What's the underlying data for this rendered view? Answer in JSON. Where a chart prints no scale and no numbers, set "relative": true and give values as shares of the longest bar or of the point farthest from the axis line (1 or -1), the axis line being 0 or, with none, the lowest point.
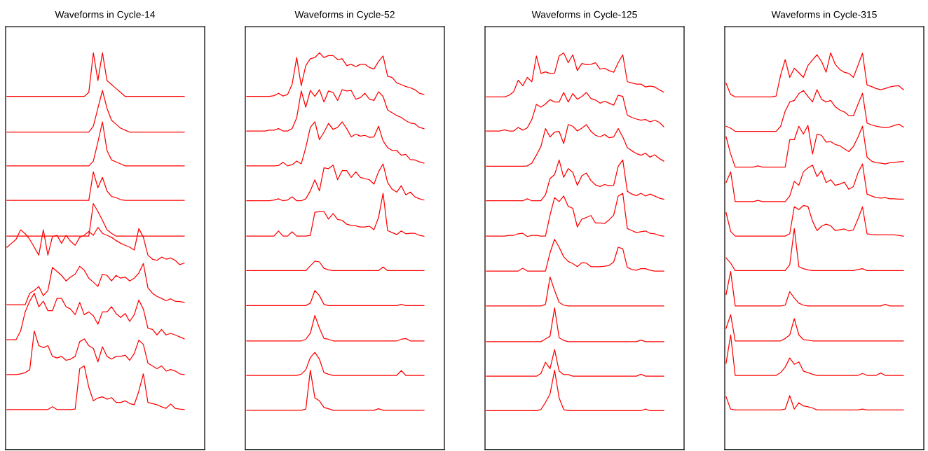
{
  "chart_data": [
    {
      "type": "line",
      "title": "Waveforms in Cycle-14",
      "relative": true,
      "categories": [
        null,
        null,
        null,
        null,
        null,
        null,
        null,
        null,
        null,
        null,
        null,
        null,
        null,
        null,
        null,
        null,
        null,
        null,
        null,
        null,
        null,
        null,
        null,
        null,
        null,
        null,
        null,
        null,
        null,
        null,
        null,
        null,
        null,
        null,
        null,
        null,
        null,
        null,
        null,
        null
      ],
      "series": [
        {
          "color": "#ff0000",
          "values": [
            0.89,
            0.89,
            0.89,
            0.89,
            0.89,
            0.89,
            0.89,
            0.89,
            0.89,
            0.89,
            0.89,
            0.89,
            0.89,
            0.89,
            0.89,
            0.89,
            0.89,
            0.89,
            0.9,
            1.0,
            0.93,
            1.0,
            0.93,
            0.92,
            0.91,
            0.9,
            0.89,
            0.89,
            0.89,
            0.89,
            0.89,
            0.89,
            0.89,
            0.89,
            0.89,
            0.89,
            0.89,
            0.89,
            0.89,
            0.89
          ]
        },
        {
          "color": "#ff0000",
          "values": [
            0.8,
            0.8,
            0.8,
            0.8,
            0.8,
            0.8,
            0.8,
            0.8,
            0.8,
            0.8,
            0.8,
            0.8,
            0.8,
            0.8,
            0.8,
            0.8,
            0.8,
            0.8,
            0.8,
            0.815,
            0.86,
            0.905,
            0.86,
            0.83,
            0.82,
            0.81,
            0.805,
            0.8,
            0.8,
            0.8,
            0.8,
            0.8,
            0.8,
            0.8,
            0.8,
            0.8,
            0.8,
            0.8,
            0.8,
            0.8
          ]
        },
        {
          "color": "#ff0000",
          "values": [
            0.715,
            0.715,
            0.715,
            0.715,
            0.715,
            0.715,
            0.715,
            0.715,
            0.715,
            0.715,
            0.715,
            0.715,
            0.715,
            0.715,
            0.715,
            0.715,
            0.715,
            0.715,
            0.715,
            0.727,
            0.775,
            0.826,
            0.754,
            0.73,
            0.725,
            0.72,
            0.715,
            0.715,
            0.715,
            0.715,
            0.715,
            0.715,
            0.715,
            0.715,
            0.715,
            0.715,
            0.715,
            0.715,
            0.715,
            0.715
          ]
        },
        {
          "color": "#ff0000",
          "values": [
            0.628,
            0.628,
            0.628,
            0.628,
            0.628,
            0.628,
            0.628,
            0.628,
            0.628,
            0.628,
            0.628,
            0.628,
            0.628,
            0.628,
            0.628,
            0.628,
            0.628,
            0.628,
            0.628,
            0.7,
            0.66,
            0.686,
            0.652,
            0.638,
            0.635,
            0.63,
            0.628,
            0.628,
            0.628,
            0.628,
            0.628,
            0.628,
            0.628,
            0.628,
            0.628,
            0.628,
            0.628,
            0.628,
            0.628,
            0.628
          ]
        },
        {
          "color": "#ff0000",
          "values": [
            0.538,
            0.538,
            0.538,
            0.538,
            0.538,
            0.538,
            0.538,
            0.538,
            0.538,
            0.538,
            0.538,
            0.538,
            0.538,
            0.538,
            0.538,
            0.538,
            0.538,
            0.538,
            0.538,
            0.62,
            0.6,
            0.578,
            0.554,
            0.545,
            0.538,
            0.538,
            0.538,
            0.538,
            0.538,
            0.538,
            0.538,
            0.538,
            0.538,
            0.538,
            0.538,
            0.538,
            0.538,
            0.538,
            0.538,
            0.538
          ]
        },
        {
          "color": "#ff0000",
          "values": [
            0.51,
            0.52,
            0.53,
            0.554,
            0.544,
            0.53,
            0.51,
            0.49,
            0.554,
            0.49,
            0.537,
            0.54,
            0.52,
            0.54,
            0.525,
            0.515,
            0.535,
            0.54,
            0.55,
            0.54,
            0.56,
            0.545,
            0.54,
            0.535,
            0.527,
            0.52,
            0.515,
            0.51,
            0.503,
            0.557,
            0.535,
            0.49,
            0.48,
            0.477,
            0.485,
            0.48,
            0.483,
            0.477,
            0.466,
            0.47
          ]
        },
        {
          "color": "#ff0000",
          "values": [
            0.365,
            0.365,
            0.365,
            0.365,
            0.365,
            0.394,
            0.401,
            0.411,
            0.388,
            0.401,
            0.459,
            0.449,
            0.439,
            0.425,
            0.435,
            0.442,
            0.462,
            0.452,
            0.432,
            0.422,
            0.411,
            0.442,
            0.439,
            0.425,
            0.439,
            0.432,
            0.435,
            0.425,
            0.432,
            0.445,
            0.469,
            0.408,
            0.394,
            0.386,
            0.381,
            0.375,
            0.38,
            0.374,
            0.373,
            0.371
          ]
        },
        {
          "color": "#ff0000",
          "values": [
            0.277,
            0.277,
            0.277,
            0.299,
            0.347,
            0.374,
            0.394,
            0.36,
            0.374,
            0.35,
            0.35,
            0.381,
            0.381,
            0.36,
            0.354,
            0.34,
            0.371,
            0.34,
            0.347,
            0.337,
            0.316,
            0.347,
            0.347,
            0.36,
            0.343,
            0.333,
            0.343,
            0.323,
            0.34,
            0.377,
            0.354,
            0.306,
            0.303,
            0.289,
            0.303,
            0.289,
            0.293,
            0.289,
            0.284,
            0.279
          ]
        },
        {
          "color": "#ff0000",
          "values": [
            0.189,
            0.189,
            0.189,
            0.191,
            0.194,
            0.201,
            0.299,
            0.262,
            0.257,
            0.262,
            0.235,
            0.231,
            0.235,
            0.225,
            0.228,
            0.235,
            0.272,
            0.279,
            0.262,
            0.255,
            0.221,
            0.259,
            0.235,
            0.228,
            0.235,
            0.235,
            0.238,
            0.225,
            0.242,
            0.276,
            0.265,
            0.218,
            0.211,
            0.204,
            0.211,
            0.198,
            0.202,
            0.198,
            0.191,
            0.189
          ]
        },
        {
          "color": "#ff0000",
          "values": [
            0.101,
            0.101,
            0.101,
            0.101,
            0.101,
            0.101,
            0.101,
            0.101,
            0.101,
            0.101,
            0.108,
            0.101,
            0.101,
            0.101,
            0.101,
            0.102,
            0.204,
            0.211,
            0.157,
            0.123,
            0.13,
            0.133,
            0.127,
            0.131,
            0.119,
            0.119,
            0.123,
            0.116,
            0.113,
            0.147,
            0.191,
            0.119,
            0.116,
            0.113,
            0.108,
            0.104,
            0.115,
            0.104,
            0.102,
            0.101
          ]
        }
      ]
    },
    {
      "type": "line",
      "title": "Waveforms in Cycle-52",
      "relative": true,
      "categories": [
        null,
        null,
        null,
        null,
        null,
        null,
        null,
        null,
        null,
        null,
        null,
        null,
        null,
        null,
        null,
        null,
        null,
        null,
        null,
        null,
        null,
        null,
        null,
        null,
        null,
        null,
        null,
        null,
        null,
        null,
        null,
        null,
        null,
        null,
        null,
        null,
        null,
        null,
        null,
        null
      ],
      "series": [
        {
          "color": "#ff0000",
          "values": [
            0.89,
            0.89,
            0.89,
            0.89,
            0.89,
            0.89,
            0.892,
            0.898,
            0.891,
            0.895,
            0.921,
            0.988,
            0.917,
            0.968,
            0.985,
            0.988,
            1.0,
            0.988,
            0.993,
            0.993,
            0.983,
            0.985,
            0.968,
            0.971,
            0.965,
            0.971,
            0.971,
            0.963,
            0.959,
            0.978,
            0.992,
            0.941,
            0.938,
            0.924,
            0.92,
            0.915,
            0.912,
            0.907,
            0.898,
            0.895
          ]
        },
        {
          "color": "#ff0000",
          "values": [
            0.803,
            0.803,
            0.803,
            0.803,
            0.803,
            0.805,
            0.805,
            0.809,
            0.803,
            0.803,
            0.809,
            0.836,
            0.904,
            0.863,
            0.905,
            0.89,
            0.907,
            0.876,
            0.904,
            0.9,
            0.88,
            0.907,
            0.904,
            0.905,
            0.883,
            0.887,
            0.898,
            0.883,
            0.88,
            0.902,
            0.89,
            0.856,
            0.849,
            0.842,
            0.837,
            0.829,
            0.823,
            0.821,
            0.812,
            0.809
          ]
        },
        {
          "color": "#ff0000",
          "values": [
            0.715,
            0.715,
            0.715,
            0.715,
            0.715,
            0.715,
            0.715,
            0.716,
            0.724,
            0.715,
            0.718,
            0.727,
            0.72,
            0.761,
            0.812,
            0.826,
            0.781,
            0.8,
            0.822,
            0.807,
            0.812,
            0.826,
            0.809,
            0.788,
            0.795,
            0.79,
            0.792,
            0.787,
            0.788,
            0.815,
            0.778,
            0.761,
            0.754,
            0.754,
            0.742,
            0.744,
            0.731,
            0.73,
            0.725,
            0.722
          ]
        },
        {
          "color": "#ff0000",
          "values": [
            0.627,
            0.627,
            0.627,
            0.627,
            0.627,
            0.627,
            0.629,
            0.632,
            0.627,
            0.629,
            0.637,
            0.627,
            0.627,
            0.632,
            0.652,
            0.68,
            0.652,
            0.71,
            0.708,
            0.717,
            0.68,
            0.703,
            0.703,
            0.686,
            0.7,
            0.686,
            0.683,
            0.68,
            0.669,
            0.7,
            0.72,
            0.673,
            0.656,
            0.649,
            0.665,
            0.642,
            0.649,
            0.637,
            0.632,
            0.629
          ]
        },
        {
          "color": "#ff0000",
          "values": [
            0.538,
            0.538,
            0.538,
            0.538,
            0.538,
            0.538,
            0.538,
            0.551,
            0.538,
            0.538,
            0.549,
            0.538,
            0.538,
            0.538,
            0.54,
            0.598,
            0.6,
            0.6,
            0.581,
            0.595,
            0.58,
            0.578,
            0.568,
            0.565,
            0.564,
            0.561,
            0.561,
            0.563,
            0.554,
            0.585,
            0.646,
            0.552,
            0.547,
            0.542,
            0.551,
            0.544,
            0.545,
            0.545,
            0.54,
            0.538
          ]
        },
        {
          "color": "#ff0000",
          "values": [
            0.451,
            0.451,
            0.451,
            0.451,
            0.451,
            0.451,
            0.451,
            0.451,
            0.451,
            0.451,
            0.451,
            0.451,
            0.451,
            0.451,
            0.463,
            0.475,
            0.473,
            0.457,
            0.453,
            0.451,
            0.451,
            0.451,
            0.451,
            0.451,
            0.451,
            0.451,
            0.451,
            0.451,
            0.451,
            0.451,
            0.46,
            0.451,
            0.451,
            0.451,
            0.451,
            0.451,
            0.451,
            0.451,
            0.451,
            0.451
          ]
        },
        {
          "color": "#ff0000",
          "values": [
            0.363,
            0.363,
            0.363,
            0.363,
            0.363,
            0.363,
            0.363,
            0.363,
            0.363,
            0.363,
            0.363,
            0.363,
            0.363,
            0.363,
            0.369,
            0.401,
            0.388,
            0.366,
            0.363,
            0.363,
            0.363,
            0.363,
            0.363,
            0.363,
            0.363,
            0.363,
            0.363,
            0.363,
            0.363,
            0.363,
            0.363,
            0.363,
            0.363,
            0.363,
            0.366,
            0.363,
            0.363,
            0.363,
            0.363,
            0.363
          ]
        },
        {
          "color": "#ff0000",
          "values": [
            0.274,
            0.274,
            0.274,
            0.274,
            0.274,
            0.274,
            0.274,
            0.274,
            0.274,
            0.274,
            0.274,
            0.274,
            0.274,
            0.278,
            0.293,
            0.338,
            0.306,
            0.28,
            0.278,
            0.274,
            0.274,
            0.274,
            0.274,
            0.274,
            0.274,
            0.274,
            0.274,
            0.274,
            0.274,
            0.274,
            0.274,
            0.274,
            0.274,
            0.274,
            0.278,
            0.28,
            0.274,
            0.274,
            0.274,
            0.274
          ]
        },
        {
          "color": "#ff0000",
          "values": [
            0.187,
            0.187,
            0.187,
            0.187,
            0.187,
            0.187,
            0.187,
            0.187,
            0.187,
            0.187,
            0.187,
            0.187,
            0.19,
            0.201,
            0.232,
            0.245,
            0.228,
            0.194,
            0.19,
            0.187,
            0.187,
            0.187,
            0.187,
            0.187,
            0.187,
            0.187,
            0.187,
            0.187,
            0.187,
            0.187,
            0.187,
            0.187,
            0.187,
            0.187,
            0.199,
            0.187,
            0.187,
            0.187,
            0.187,
            0.187
          ]
        },
        {
          "color": "#ff0000",
          "values": [
            0.099,
            0.099,
            0.099,
            0.099,
            0.099,
            0.099,
            0.099,
            0.099,
            0.099,
            0.099,
            0.099,
            0.099,
            0.099,
            0.102,
            0.2,
            0.13,
            0.123,
            0.106,
            0.103,
            0.099,
            0.099,
            0.099,
            0.099,
            0.099,
            0.099,
            0.099,
            0.099,
            0.099,
            0.099,
            0.103,
            0.099,
            0.099,
            0.099,
            0.099,
            0.099,
            0.099,
            0.099,
            0.099,
            0.099,
            0.099
          ]
        }
      ]
    },
    {
      "type": "line",
      "title": "Waveforms in Cycle-125",
      "relative": true,
      "categories": [
        null,
        null,
        null,
        null,
        null,
        null,
        null,
        null,
        null,
        null,
        null,
        null,
        null,
        null,
        null,
        null,
        null,
        null,
        null,
        null,
        null,
        null,
        null,
        null,
        null,
        null,
        null,
        null,
        null,
        null,
        null,
        null,
        null,
        null,
        null,
        null,
        null,
        null,
        null,
        null
      ],
      "series": [
        {
          "color": "#ff0000",
          "values": [
            0.889,
            0.889,
            0.889,
            0.889,
            0.889,
            0.893,
            0.902,
            0.931,
            0.917,
            0.938,
            0.927,
            0.992,
            0.948,
            0.952,
            0.948,
            0.949,
            0.992,
            1.0,
            0.975,
            0.995,
            0.955,
            0.973,
            0.97,
            0.971,
            0.975,
            0.959,
            0.961,
            0.955,
            0.951,
            0.975,
            0.995,
            0.927,
            0.924,
            0.921,
            0.921,
            0.914,
            0.916,
            0.914,
            0.907,
            0.901
          ]
        },
        {
          "color": "#ff0000",
          "values": [
            0.803,
            0.803,
            0.803,
            0.803,
            0.806,
            0.803,
            0.803,
            0.812,
            0.805,
            0.811,
            0.832,
            0.87,
            0.863,
            0.871,
            0.882,
            0.876,
            0.876,
            0.9,
            0.876,
            0.897,
            0.883,
            0.89,
            0.9,
            0.885,
            0.881,
            0.873,
            0.878,
            0.873,
            0.868,
            0.893,
            0.89,
            0.843,
            0.837,
            0.833,
            0.83,
            0.832,
            0.826,
            0.83,
            0.825,
            0.814
          ]
        },
        {
          "color": "#ff0000",
          "values": [
            0.714,
            0.714,
            0.714,
            0.714,
            0.714,
            0.714,
            0.714,
            0.714,
            0.714,
            0.715,
            0.722,
            0.742,
            0.764,
            0.809,
            0.788,
            0.8,
            0.802,
            0.771,
            0.819,
            0.815,
            0.803,
            0.81,
            0.819,
            0.802,
            0.792,
            0.788,
            0.794,
            0.786,
            0.788,
            0.809,
            0.788,
            0.761,
            0.753,
            0.746,
            0.742,
            0.747,
            0.737,
            0.743,
            0.734,
            0.727
          ]
        },
        {
          "color": "#ff0000",
          "values": [
            0.627,
            0.627,
            0.627,
            0.627,
            0.627,
            0.627,
            0.627,
            0.627,
            0.627,
            0.632,
            0.627,
            0.627,
            0.627,
            0.642,
            0.683,
            0.693,
            0.73,
            0.686,
            0.708,
            0.699,
            0.666,
            0.69,
            0.697,
            0.678,
            0.667,
            0.663,
            0.668,
            0.665,
            0.666,
            0.714,
            0.73,
            0.651,
            0.644,
            0.64,
            0.646,
            0.639,
            0.644,
            0.639,
            0.634,
            0.631
          ]
        },
        {
          "color": "#ff0000",
          "values": [
            0.538,
            0.538,
            0.538,
            0.538,
            0.538,
            0.54,
            0.54,
            0.544,
            0.545,
            0.537,
            0.54,
            0.54,
            0.538,
            0.538,
            0.591,
            0.635,
            0.625,
            0.639,
            0.613,
            0.608,
            0.561,
            0.581,
            0.585,
            0.59,
            0.571,
            0.571,
            0.57,
            0.579,
            0.591,
            0.639,
            0.646,
            0.557,
            0.552,
            0.547,
            0.549,
            0.551,
            0.545,
            0.544,
            0.54,
            0.538
          ]
        },
        {
          "color": "#ff0000",
          "values": [
            0.45,
            0.45,
            0.45,
            0.45,
            0.45,
            0.45,
            0.45,
            0.45,
            0.457,
            0.45,
            0.45,
            0.45,
            0.45,
            0.45,
            0.496,
            0.53,
            0.51,
            0.486,
            0.474,
            0.469,
            0.461,
            0.471,
            0.47,
            0.461,
            0.461,
            0.461,
            0.462,
            0.464,
            0.473,
            0.51,
            0.506,
            0.459,
            0.454,
            0.452,
            0.456,
            0.456,
            0.452,
            0.45,
            0.45,
            0.45
          ]
        },
        {
          "color": "#ff0000",
          "values": [
            0.362,
            0.362,
            0.362,
            0.362,
            0.362,
            0.362,
            0.362,
            0.362,
            0.362,
            0.362,
            0.362,
            0.362,
            0.362,
            0.366,
            0.435,
            0.401,
            0.371,
            0.364,
            0.362,
            0.362,
            0.362,
            0.362,
            0.362,
            0.362,
            0.362,
            0.362,
            0.362,
            0.362,
            0.362,
            0.362,
            0.362,
            0.362,
            0.362,
            0.362,
            0.362,
            0.362,
            0.362,
            0.362,
            0.362,
            0.362
          ]
        },
        {
          "color": "#ff0000",
          "values": [
            0.272,
            0.272,
            0.272,
            0.272,
            0.272,
            0.272,
            0.272,
            0.272,
            0.272,
            0.272,
            0.272,
            0.272,
            0.272,
            0.279,
            0.286,
            0.357,
            0.282,
            0.275,
            0.272,
            0.272,
            0.272,
            0.272,
            0.272,
            0.272,
            0.272,
            0.272,
            0.272,
            0.272,
            0.272,
            0.272,
            0.272,
            0.272,
            0.272,
            0.272,
            0.276,
            0.272,
            0.272,
            0.272,
            0.272,
            0.272
          ]
        },
        {
          "color": "#ff0000",
          "values": [
            0.185,
            0.185,
            0.185,
            0.185,
            0.185,
            0.185,
            0.185,
            0.185,
            0.185,
            0.185,
            0.185,
            0.185,
            0.192,
            0.22,
            0.204,
            0.252,
            0.198,
            0.189,
            0.189,
            0.185,
            0.185,
            0.185,
            0.185,
            0.185,
            0.185,
            0.185,
            0.185,
            0.185,
            0.185,
            0.185,
            0.185,
            0.185,
            0.185,
            0.185,
            0.19,
            0.185,
            0.185,
            0.185,
            0.185,
            0.185
          ]
        },
        {
          "color": "#ff0000",
          "values": [
            0.098,
            0.098,
            0.098,
            0.098,
            0.098,
            0.098,
            0.098,
            0.098,
            0.098,
            0.098,
            0.098,
            0.098,
            0.101,
            0.119,
            0.14,
            0.2,
            0.13,
            0.101,
            0.098,
            0.098,
            0.098,
            0.098,
            0.098,
            0.098,
            0.098,
            0.098,
            0.098,
            0.098,
            0.098,
            0.098,
            0.098,
            0.098,
            0.098,
            0.098,
            0.098,
            0.102,
            0.098,
            0.098,
            0.098,
            0.098
          ]
        }
      ]
    },
    {
      "type": "line",
      "title": "Waveforms in Cycle-315",
      "relative": true,
      "categories": [
        null,
        null,
        null,
        null,
        null,
        null,
        null,
        null,
        null,
        null,
        null,
        null,
        null,
        null,
        null,
        null,
        null,
        null,
        null,
        null,
        null,
        null,
        null,
        null,
        null,
        null,
        null,
        null,
        null,
        null,
        null,
        null,
        null,
        null,
        null,
        null,
        null,
        null,
        null,
        null
      ],
      "series": [
        {
          "color": "#ff0000",
          "values": [
            0.923,
            0.895,
            0.889,
            0.889,
            0.889,
            0.889,
            0.889,
            0.889,
            0.889,
            0.889,
            0.889,
            0.891,
            0.944,
            0.983,
            0.938,
            0.961,
            0.95,
            0.938,
            0.968,
            0.982,
            0.995,
            0.978,
            0.951,
            1.0,
            0.971,
            0.958,
            0.951,
            0.948,
            0.938,
            0.968,
            0.999,
            0.919,
            0.915,
            0.91,
            0.907,
            0.91,
            0.914,
            0.916,
            0.917,
            0.907
          ]
        },
        {
          "color": "#ff0000",
          "values": [
            0.815,
            0.81,
            0.802,
            0.802,
            0.802,
            0.802,
            0.802,
            0.802,
            0.802,
            0.802,
            0.802,
            0.802,
            0.815,
            0.853,
            0.876,
            0.88,
            0.897,
            0.905,
            0.89,
            0.876,
            0.907,
            0.883,
            0.876,
            0.88,
            0.864,
            0.856,
            0.851,
            0.842,
            0.841,
            0.87,
            0.898,
            0.823,
            0.818,
            0.815,
            0.813,
            0.811,
            0.813,
            0.817,
            0.82,
            0.813
          ]
        },
        {
          "color": "#ff0000",
          "values": [
            0.788,
            0.745,
            0.712,
            0.712,
            0.712,
            0.712,
            0.712,
            0.715,
            0.712,
            0.712,
            0.712,
            0.712,
            0.712,
            0.712,
            0.781,
            0.781,
            0.815,
            0.795,
            0.817,
            0.745,
            0.795,
            0.792,
            0.775,
            0.776,
            0.769,
            0.766,
            0.758,
            0.751,
            0.764,
            0.787,
            0.815,
            0.737,
            0.727,
            0.723,
            0.722,
            0.72,
            0.723,
            0.724,
            0.725,
            0.726
          ]
        },
        {
          "color": "#ff0000",
          "values": [
            0.673,
            0.7,
            0.625,
            0.625,
            0.625,
            0.625,
            0.625,
            0.628,
            0.625,
            0.625,
            0.625,
            0.625,
            0.625,
            0.625,
            0.639,
            0.676,
            0.666,
            0.7,
            0.71,
            0.717,
            0.688,
            0.703,
            0.673,
            0.68,
            0.666,
            0.669,
            0.674,
            0.656,
            0.663,
            0.697,
            0.72,
            0.644,
            0.639,
            0.635,
            0.634,
            0.635,
            0.632,
            0.632,
            0.631,
            0.631
          ]
        },
        {
          "color": "#ff0000",
          "values": [
            0.597,
            0.55,
            0.538,
            0.538,
            0.538,
            0.538,
            0.538,
            0.538,
            0.538,
            0.538,
            0.538,
            0.538,
            0.538,
            0.538,
            0.544,
            0.612,
            0.605,
            0.615,
            0.613,
            0.576,
            0.552,
            0.563,
            0.568,
            0.564,
            0.552,
            0.554,
            0.556,
            0.551,
            0.554,
            0.581,
            0.612,
            0.544,
            0.542,
            0.541,
            0.541,
            0.541,
            0.541,
            0.541,
            0.54,
            0.538
          ]
        },
        {
          "color": "#ff0000",
          "values": [
            0.483,
            0.47,
            0.451,
            0.451,
            0.451,
            0.451,
            0.451,
            0.451,
            0.451,
            0.451,
            0.451,
            0.451,
            0.451,
            0.451,
            0.466,
            0.557,
            0.461,
            0.456,
            0.453,
            0.451,
            0.451,
            0.451,
            0.451,
            0.451,
            0.451,
            0.451,
            0.451,
            0.451,
            0.451,
            0.454,
            0.456,
            0.451,
            0.451,
            0.451,
            0.451,
            0.451,
            0.451,
            0.451,
            0.451,
            0.451
          ]
        },
        {
          "color": "#ff0000",
          "values": [
            0.391,
            0.449,
            0.362,
            0.362,
            0.362,
            0.362,
            0.362,
            0.362,
            0.362,
            0.362,
            0.362,
            0.362,
            0.362,
            0.364,
            0.398,
            0.382,
            0.369,
            0.364,
            0.362,
            0.362,
            0.362,
            0.362,
            0.362,
            0.362,
            0.362,
            0.362,
            0.362,
            0.362,
            0.362,
            0.362,
            0.362,
            0.362,
            0.362,
            0.362,
            0.362,
            0.366,
            0.362,
            0.362,
            0.362,
            0.362
          ]
        },
        {
          "color": "#ff0000",
          "values": [
            0.306,
            0.34,
            0.274,
            0.274,
            0.274,
            0.274,
            0.274,
            0.274,
            0.274,
            0.274,
            0.274,
            0.274,
            0.274,
            0.28,
            0.289,
            0.33,
            0.289,
            0.277,
            0.276,
            0.274,
            0.274,
            0.274,
            0.274,
            0.274,
            0.274,
            0.274,
            0.274,
            0.274,
            0.274,
            0.274,
            0.274,
            0.274,
            0.274,
            0.274,
            0.274,
            0.274,
            0.274,
            0.274,
            0.274,
            0.274
          ]
        },
        {
          "color": "#ff0000",
          "values": [
            0.218,
            0.289,
            0.187,
            0.187,
            0.187,
            0.187,
            0.187,
            0.187,
            0.187,
            0.187,
            0.187,
            0.187,
            0.194,
            0.208,
            0.231,
            0.215,
            0.221,
            0.198,
            0.194,
            0.19,
            0.187,
            0.187,
            0.187,
            0.187,
            0.187,
            0.187,
            0.187,
            0.187,
            0.187,
            0.187,
            0.192,
            0.187,
            0.187,
            0.187,
            0.193,
            0.187,
            0.187,
            0.187,
            0.187,
            0.187
          ]
        },
        {
          "color": "#ff0000",
          "values": [
            0.133,
            0.102,
            0.1,
            0.1,
            0.1,
            0.1,
            0.1,
            0.1,
            0.1,
            0.1,
            0.1,
            0.1,
            0.1,
            0.102,
            0.136,
            0.102,
            0.118,
            0.11,
            0.108,
            0.105,
            0.1,
            0.1,
            0.1,
            0.1,
            0.1,
            0.1,
            0.1,
            0.1,
            0.1,
            0.1,
            0.102,
            0.1,
            0.1,
            0.1,
            0.1,
            0.1,
            0.1,
            0.1,
            0.1,
            0.1
          ]
        }
      ]
    }
  ]
}
